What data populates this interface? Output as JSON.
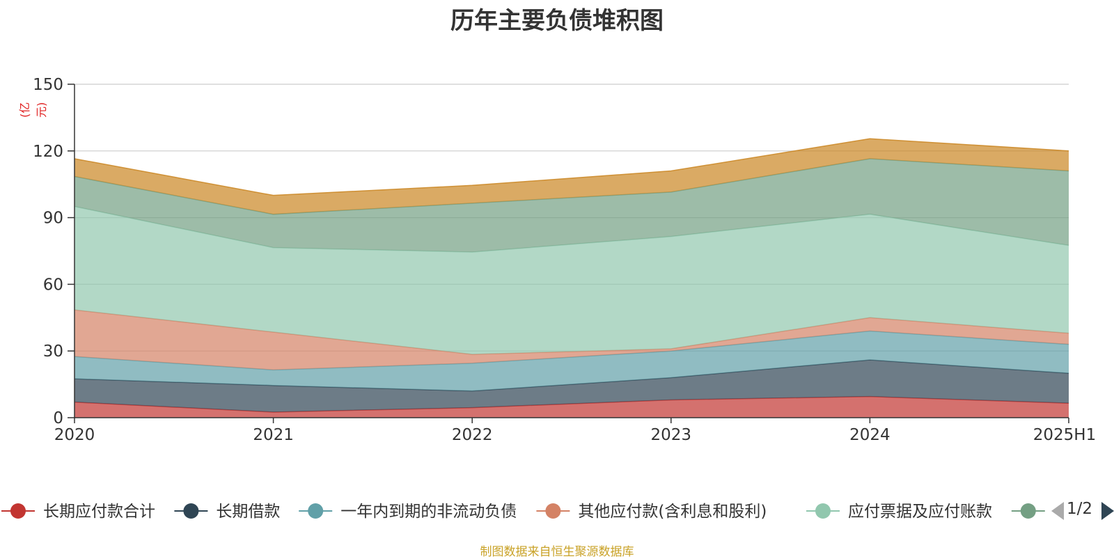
{
  "chart_data": {
    "type": "area",
    "stacked": true,
    "title": "历年主要负债堆积图",
    "unit_label": "(亿元)",
    "categories": [
      "2020",
      "2021",
      "2022",
      "2023",
      "2024",
      "2025H1"
    ],
    "ylim": [
      0,
      150
    ],
    "yticks": [
      0,
      30,
      60,
      90,
      120,
      150
    ],
    "grid": true,
    "legend_position": "bottom",
    "series": [
      {
        "name": "长期应付款合计",
        "color": "#c23531",
        "values": [
          7,
          2.5,
          4.5,
          8,
          9.5,
          6.5
        ]
      },
      {
        "name": "长期借款",
        "color": "#2f4554",
        "values": [
          10.5,
          12,
          7.5,
          10,
          16.5,
          13.5
        ]
      },
      {
        "name": "一年内到期的非流动负债",
        "color": "#61a0a8",
        "values": [
          10,
          7,
          12.5,
          12,
          13,
          13
        ]
      },
      {
        "name": "其他应付款(含利息和股利)",
        "color": "#d48265",
        "values": [
          21,
          17,
          4,
          1,
          6,
          5
        ]
      },
      {
        "name": "应付票据及应付账款",
        "color": "#91c7ae",
        "values": [
          46.5,
          38,
          46,
          50.5,
          46.5,
          39.5
        ]
      },
      {
        "name": "",
        "color": "#749f83",
        "values": [
          13.5,
          15,
          22,
          20,
          25,
          33.5
        ]
      },
      {
        "name": "",
        "color": "#ca8622",
        "values": [
          8,
          8.5,
          8,
          9.5,
          9,
          9
        ]
      }
    ]
  },
  "legend": {
    "visible_items": [
      {
        "label": "长期应付款合计",
        "color": "#c23531"
      },
      {
        "label": "长期借款",
        "color": "#2f4554"
      },
      {
        "label": "一年内到期的非流动负债",
        "color": "#61a0a8"
      },
      {
        "label": "其他应付款(含利息和股利)",
        "color": "#d48265"
      },
      {
        "label": "应付票据及应付账款",
        "color": "#91c7ae"
      },
      {
        "label": "",
        "color": "#749f83"
      }
    ],
    "page_indicator": "1/2"
  },
  "source_note": "制图数据来自恒生聚源数据库"
}
